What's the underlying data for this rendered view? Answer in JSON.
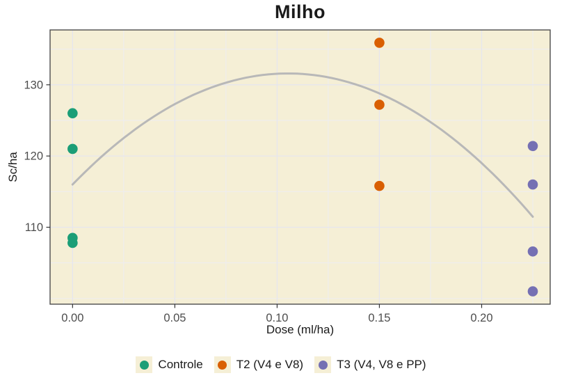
{
  "chart_data": {
    "type": "scatter",
    "title": "Milho",
    "xlabel": "Dose (ml/ha)",
    "ylabel": "Sc/ha",
    "x_domain": [
      -0.011,
      0.2335
    ],
    "y_domain": [
      99.2,
      137.7
    ],
    "x_ticks": [
      0.0,
      0.05,
      0.1,
      0.15,
      0.2
    ],
    "x_tick_labels": [
      "0.00",
      "0.05",
      "0.10",
      "0.15",
      "0.20"
    ],
    "y_ticks": [
      110,
      120,
      130
    ],
    "y_tick_labels": [
      "110",
      "120",
      "130"
    ],
    "x_minor_ticks": [
      0.025,
      0.075,
      0.125,
      0.175,
      0.225
    ],
    "y_minor_ticks": [
      100,
      105,
      115,
      125,
      135
    ],
    "grid": true,
    "legend_position": "bottom",
    "series": [
      {
        "name": "Controle",
        "color": "#1b9e77",
        "points": [
          {
            "x": 0.0,
            "y": 126.0
          },
          {
            "x": 0.0,
            "y": 121.0
          },
          {
            "x": 0.0,
            "y": 108.5
          },
          {
            "x": 0.0,
            "y": 107.8
          }
        ]
      },
      {
        "name": "T2 (V4 e V8)",
        "color": "#d95f02",
        "points": [
          {
            "x": 0.15,
            "y": 135.9
          },
          {
            "x": 0.15,
            "y": 127.2
          },
          {
            "x": 0.15,
            "y": 115.8
          }
        ]
      },
      {
        "name": "T3 (V4, V8 e PP)",
        "color": "#7570b3",
        "points": [
          {
            "x": 0.225,
            "y": 121.4
          },
          {
            "x": 0.225,
            "y": 116.0
          },
          {
            "x": 0.225,
            "y": 106.6
          },
          {
            "x": 0.225,
            "y": 101.0
          }
        ]
      }
    ],
    "trend_line": {
      "type": "quadratic_fit",
      "coefficients": {
        "a": -1405,
        "b": 296,
        "c": 116.0
      },
      "x_range": [
        0.0,
        0.225
      ],
      "peak": {
        "x": 0.105,
        "y": 131.6
      },
      "color": "#b8b8b8",
      "width": 3
    },
    "styles": {
      "panel_bg": "#f5efd6",
      "grid_major_color": "#e6e6ee",
      "grid_minor_color": "#ededf2",
      "panel_border_color": "#4d4d4d",
      "tick_mark_color": "#333333",
      "tick_label_color": "#4d4d4d",
      "point_radius": 7.3,
      "legend_key_bg": "#f5efd6"
    }
  }
}
